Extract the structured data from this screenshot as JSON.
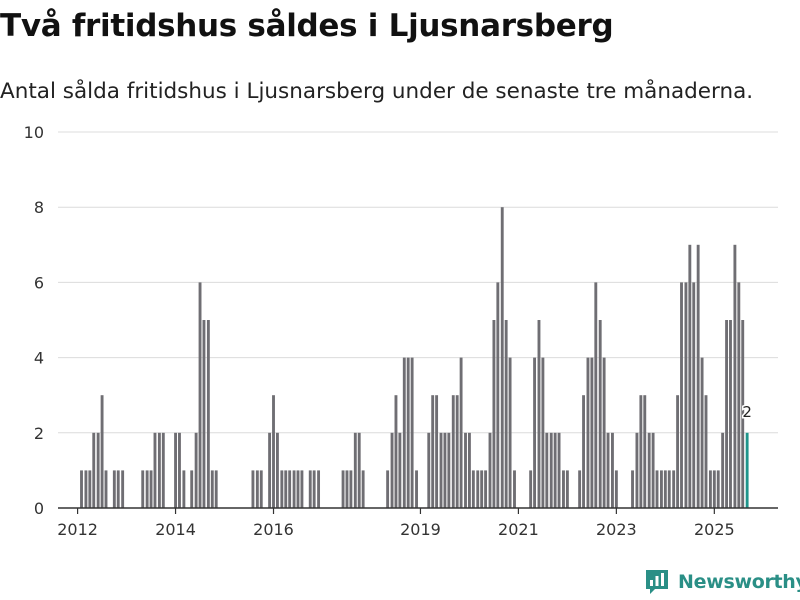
{
  "title": "Två fritidshus såldes i Ljusnarsberg",
  "subtitle": "Antal sålda fritidshus i Ljusnarsberg under de senaste tre månaderna.",
  "brand": {
    "name": "Newsworthy",
    "icon": "newsworthy-logo-icon"
  },
  "colors": {
    "bar": "#6f6e73",
    "highlight": "#1f958b",
    "grid": "#dcdcdc",
    "axis": "#333333",
    "brand": "#2a8f86"
  },
  "chart_data": {
    "type": "bar",
    "title": "Två fritidshus såldes i Ljusnarsberg",
    "ylabel": "",
    "xlabel": "",
    "ylim": [
      0,
      10
    ],
    "yticks": [
      0,
      2,
      4,
      6,
      8,
      10
    ],
    "xlim": [
      2011.6,
      2026.3
    ],
    "xticks": [
      2012,
      2014,
      2016,
      2019,
      2021,
      2023,
      2025
    ],
    "bar_width_years": 0.08333,
    "grid": true,
    "points": [
      {
        "x": 2012.08,
        "y": 1
      },
      {
        "x": 2012.17,
        "y": 1
      },
      {
        "x": 2012.25,
        "y": 1
      },
      {
        "x": 2012.33,
        "y": 2
      },
      {
        "x": 2012.42,
        "y": 2
      },
      {
        "x": 2012.5,
        "y": 3
      },
      {
        "x": 2012.58,
        "y": 1
      },
      {
        "x": 2012.75,
        "y": 1
      },
      {
        "x": 2012.83,
        "y": 1
      },
      {
        "x": 2012.92,
        "y": 1
      },
      {
        "x": 2013.33,
        "y": 1
      },
      {
        "x": 2013.42,
        "y": 1
      },
      {
        "x": 2013.5,
        "y": 1
      },
      {
        "x": 2013.58,
        "y": 2
      },
      {
        "x": 2013.67,
        "y": 2
      },
      {
        "x": 2013.75,
        "y": 2
      },
      {
        "x": 2014.0,
        "y": 2
      },
      {
        "x": 2014.08,
        "y": 2
      },
      {
        "x": 2014.17,
        "y": 1
      },
      {
        "x": 2014.33,
        "y": 1
      },
      {
        "x": 2014.42,
        "y": 2
      },
      {
        "x": 2014.5,
        "y": 6
      },
      {
        "x": 2014.58,
        "y": 5
      },
      {
        "x": 2014.67,
        "y": 5
      },
      {
        "x": 2014.75,
        "y": 1
      },
      {
        "x": 2014.83,
        "y": 1
      },
      {
        "x": 2015.58,
        "y": 1
      },
      {
        "x": 2015.67,
        "y": 1
      },
      {
        "x": 2015.75,
        "y": 1
      },
      {
        "x": 2015.92,
        "y": 2
      },
      {
        "x": 2016.0,
        "y": 3
      },
      {
        "x": 2016.08,
        "y": 2
      },
      {
        "x": 2016.17,
        "y": 1
      },
      {
        "x": 2016.25,
        "y": 1
      },
      {
        "x": 2016.33,
        "y": 1
      },
      {
        "x": 2016.42,
        "y": 1
      },
      {
        "x": 2016.5,
        "y": 1
      },
      {
        "x": 2016.58,
        "y": 1
      },
      {
        "x": 2016.75,
        "y": 1
      },
      {
        "x": 2016.83,
        "y": 1
      },
      {
        "x": 2016.92,
        "y": 1
      },
      {
        "x": 2017.42,
        "y": 1
      },
      {
        "x": 2017.5,
        "y": 1
      },
      {
        "x": 2017.58,
        "y": 1
      },
      {
        "x": 2017.67,
        "y": 2
      },
      {
        "x": 2017.75,
        "y": 2
      },
      {
        "x": 2017.83,
        "y": 1
      },
      {
        "x": 2018.33,
        "y": 1
      },
      {
        "x": 2018.42,
        "y": 2
      },
      {
        "x": 2018.5,
        "y": 3
      },
      {
        "x": 2018.58,
        "y": 2
      },
      {
        "x": 2018.67,
        "y": 4
      },
      {
        "x": 2018.75,
        "y": 4
      },
      {
        "x": 2018.83,
        "y": 4
      },
      {
        "x": 2018.92,
        "y": 1
      },
      {
        "x": 2019.17,
        "y": 2
      },
      {
        "x": 2019.25,
        "y": 3
      },
      {
        "x": 2019.33,
        "y": 3
      },
      {
        "x": 2019.42,
        "y": 2
      },
      {
        "x": 2019.5,
        "y": 2
      },
      {
        "x": 2019.58,
        "y": 2
      },
      {
        "x": 2019.67,
        "y": 3
      },
      {
        "x": 2019.75,
        "y": 3
      },
      {
        "x": 2019.83,
        "y": 4
      },
      {
        "x": 2019.92,
        "y": 2
      },
      {
        "x": 2020.0,
        "y": 2
      },
      {
        "x": 2020.08,
        "y": 1
      },
      {
        "x": 2020.17,
        "y": 1
      },
      {
        "x": 2020.25,
        "y": 1
      },
      {
        "x": 2020.33,
        "y": 1
      },
      {
        "x": 2020.42,
        "y": 2
      },
      {
        "x": 2020.5,
        "y": 5
      },
      {
        "x": 2020.58,
        "y": 6
      },
      {
        "x": 2020.67,
        "y": 8
      },
      {
        "x": 2020.75,
        "y": 5
      },
      {
        "x": 2020.83,
        "y": 4
      },
      {
        "x": 2020.92,
        "y": 1
      },
      {
        "x": 2021.25,
        "y": 1
      },
      {
        "x": 2021.33,
        "y": 4
      },
      {
        "x": 2021.42,
        "y": 5
      },
      {
        "x": 2021.5,
        "y": 4
      },
      {
        "x": 2021.58,
        "y": 2
      },
      {
        "x": 2021.67,
        "y": 2
      },
      {
        "x": 2021.75,
        "y": 2
      },
      {
        "x": 2021.83,
        "y": 2
      },
      {
        "x": 2021.92,
        "y": 1
      },
      {
        "x": 2022.0,
        "y": 1
      },
      {
        "x": 2022.25,
        "y": 1
      },
      {
        "x": 2022.33,
        "y": 3
      },
      {
        "x": 2022.42,
        "y": 4
      },
      {
        "x": 2022.5,
        "y": 4
      },
      {
        "x": 2022.58,
        "y": 6
      },
      {
        "x": 2022.67,
        "y": 5
      },
      {
        "x": 2022.75,
        "y": 4
      },
      {
        "x": 2022.83,
        "y": 2
      },
      {
        "x": 2022.92,
        "y": 2
      },
      {
        "x": 2023.0,
        "y": 1
      },
      {
        "x": 2023.33,
        "y": 1
      },
      {
        "x": 2023.42,
        "y": 2
      },
      {
        "x": 2023.5,
        "y": 3
      },
      {
        "x": 2023.58,
        "y": 3
      },
      {
        "x": 2023.67,
        "y": 2
      },
      {
        "x": 2023.75,
        "y": 2
      },
      {
        "x": 2023.83,
        "y": 1
      },
      {
        "x": 2023.92,
        "y": 1
      },
      {
        "x": 2024.0,
        "y": 1
      },
      {
        "x": 2024.08,
        "y": 1
      },
      {
        "x": 2024.17,
        "y": 1
      },
      {
        "x": 2024.25,
        "y": 3
      },
      {
        "x": 2024.33,
        "y": 6
      },
      {
        "x": 2024.42,
        "y": 6
      },
      {
        "x": 2024.5,
        "y": 7
      },
      {
        "x": 2024.58,
        "y": 6
      },
      {
        "x": 2024.67,
        "y": 7
      },
      {
        "x": 2024.75,
        "y": 4
      },
      {
        "x": 2024.83,
        "y": 3
      },
      {
        "x": 2024.92,
        "y": 1
      },
      {
        "x": 2025.0,
        "y": 1
      },
      {
        "x": 2025.08,
        "y": 1
      },
      {
        "x": 2025.17,
        "y": 2
      },
      {
        "x": 2025.25,
        "y": 5
      },
      {
        "x": 2025.33,
        "y": 5
      },
      {
        "x": 2025.42,
        "y": 7
      },
      {
        "x": 2025.5,
        "y": 6
      },
      {
        "x": 2025.58,
        "y": 5
      },
      {
        "x": 2025.67,
        "y": 2,
        "highlight": true,
        "label": "2"
      }
    ]
  }
}
